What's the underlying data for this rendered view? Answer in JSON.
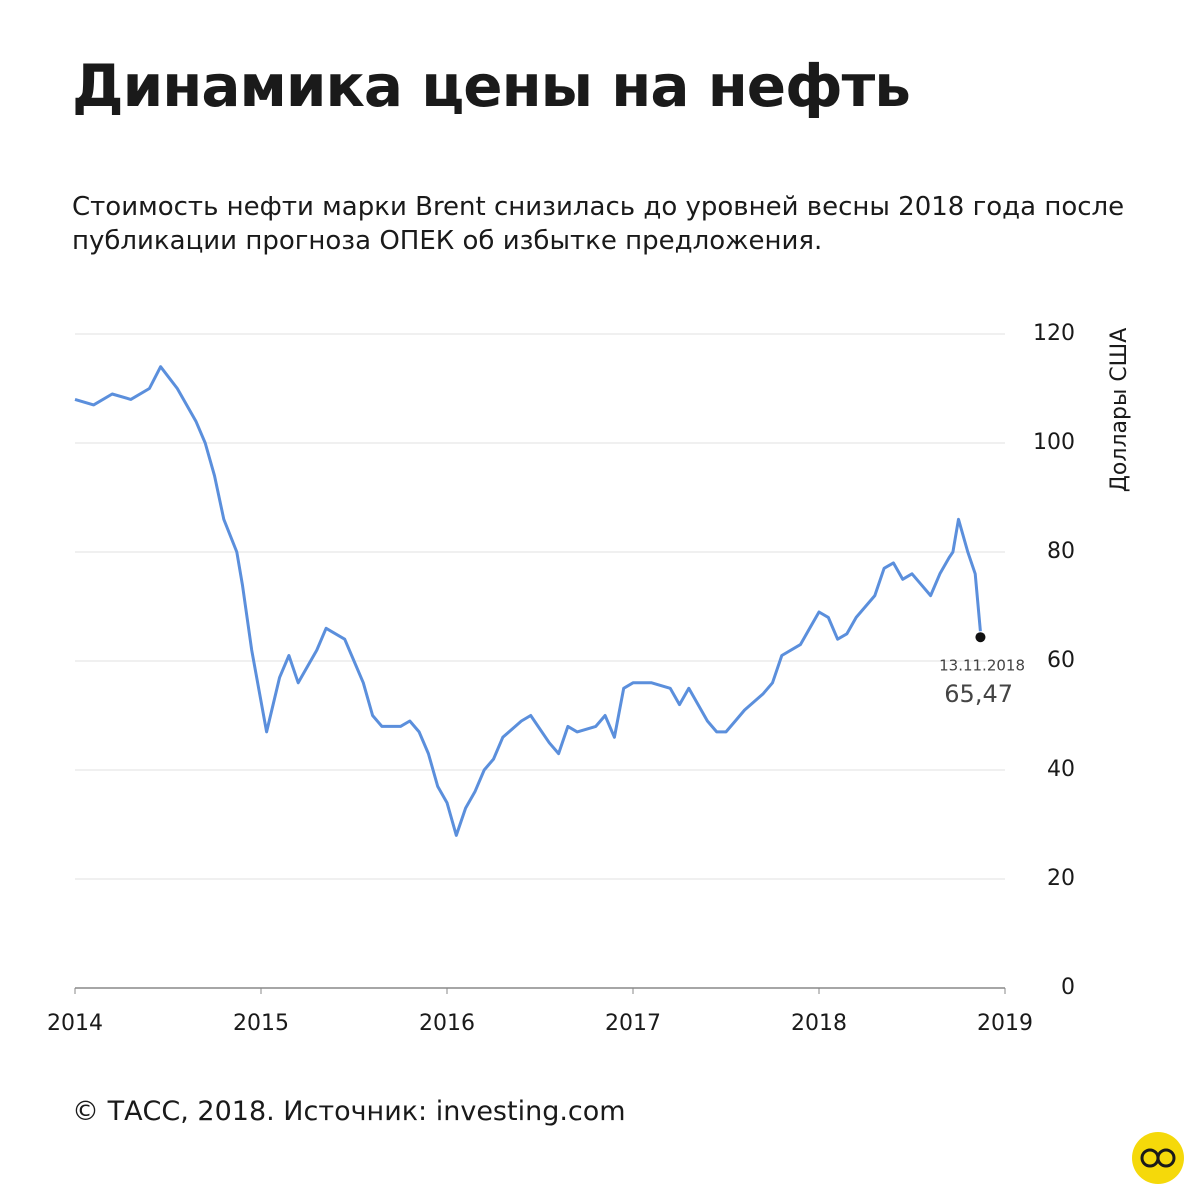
{
  "chart_data": {
    "type": "line",
    "title": "Динамика цены на нефть",
    "subtitle": "Стоимость нефти марки Brent снизилась до уровней весны 2018 года после публикации прогноза ОПЕК об избытке предложения.",
    "y_label": "Доллары США",
    "source": "© ТАСС, 2018. Источник: investing.com",
    "end_date": "13.11.2018",
    "x": [
      2014.0,
      2014.1,
      2014.2,
      2014.3,
      2014.4,
      2014.46,
      2014.55,
      2014.65,
      2014.7,
      2014.75,
      2014.8,
      2014.87,
      2014.9,
      2014.95,
      2015.03,
      2015.1,
      2015.15,
      2015.2,
      2015.3,
      2015.35,
      2015.45,
      2015.5,
      2015.55,
      2015.6,
      2015.65,
      2015.7,
      2015.75,
      2015.8,
      2015.85,
      2015.9,
      2015.95,
      2016.0,
      2016.05,
      2016.1,
      2016.15,
      2016.2,
      2016.25,
      2016.3,
      2016.4,
      2016.45,
      2016.55,
      2016.6,
      2016.65,
      2016.7,
      2016.8,
      2016.85,
      2016.9,
      2016.95,
      2017.0,
      2017.1,
      2017.2,
      2017.25,
      2017.3,
      2017.35,
      2017.4,
      2017.45,
      2017.5,
      2017.55,
      2017.6,
      2017.7,
      2017.75,
      2017.8,
      2017.9,
      2017.95,
      2018.0,
      2018.05,
      2018.1,
      2018.15,
      2018.2,
      2018.3,
      2018.35,
      2018.4,
      2018.45,
      2018.5,
      2018.55,
      2018.6,
      2018.65,
      2018.7,
      2018.72,
      2018.75,
      2018.8,
      2018.84,
      2018.868
    ],
    "series": [
      {
        "color": "#5b8fdc",
        "values": [
          108,
          107,
          109,
          108,
          110,
          114,
          110,
          104,
          100,
          94,
          86,
          80,
          74,
          62,
          47,
          57,
          61,
          56,
          62,
          66,
          64,
          60,
          56,
          50,
          48,
          48,
          48,
          49,
          47,
          43,
          37,
          34,
          28,
          33,
          36,
          40,
          42,
          46,
          49,
          50,
          45,
          43,
          48,
          47,
          48,
          50,
          46,
          55,
          56,
          56,
          55,
          52,
          55,
          52,
          49,
          47,
          47,
          49,
          51,
          54,
          56,
          61,
          63,
          66,
          69,
          68,
          64,
          65,
          68,
          72,
          77,
          78,
          75,
          76,
          74,
          72,
          76,
          79,
          80,
          86,
          80,
          76,
          65.47
        ],
        "value_labels": [
          null,
          null,
          null,
          null,
          null,
          null,
          null,
          null,
          null,
          null,
          null,
          null,
          null,
          null,
          null,
          null,
          null,
          null,
          null,
          null,
          null,
          null,
          null,
          null,
          null,
          null,
          null,
          null,
          null,
          null,
          null,
          null,
          null,
          null,
          null,
          null,
          null,
          null,
          null,
          null,
          null,
          null,
          null,
          null,
          null,
          null,
          null,
          null,
          null,
          null,
          null,
          null,
          null,
          null,
          null,
          null,
          null,
          null,
          null,
          null,
          null,
          null,
          null,
          null,
          null,
          null,
          null,
          null,
          null,
          null,
          null,
          null,
          null,
          null,
          null,
          null,
          null,
          null,
          null,
          null,
          null,
          null,
          "65,47"
        ]
      }
    ],
    "xlim": [
      2014,
      2019
    ],
    "xticks": [
      2014,
      2015,
      2016,
      2017,
      2018,
      2019
    ],
    "ylim": [
      0,
      120
    ],
    "yticks": [
      0,
      20,
      40,
      60,
      80,
      100,
      120
    ],
    "grid": true
  }
}
